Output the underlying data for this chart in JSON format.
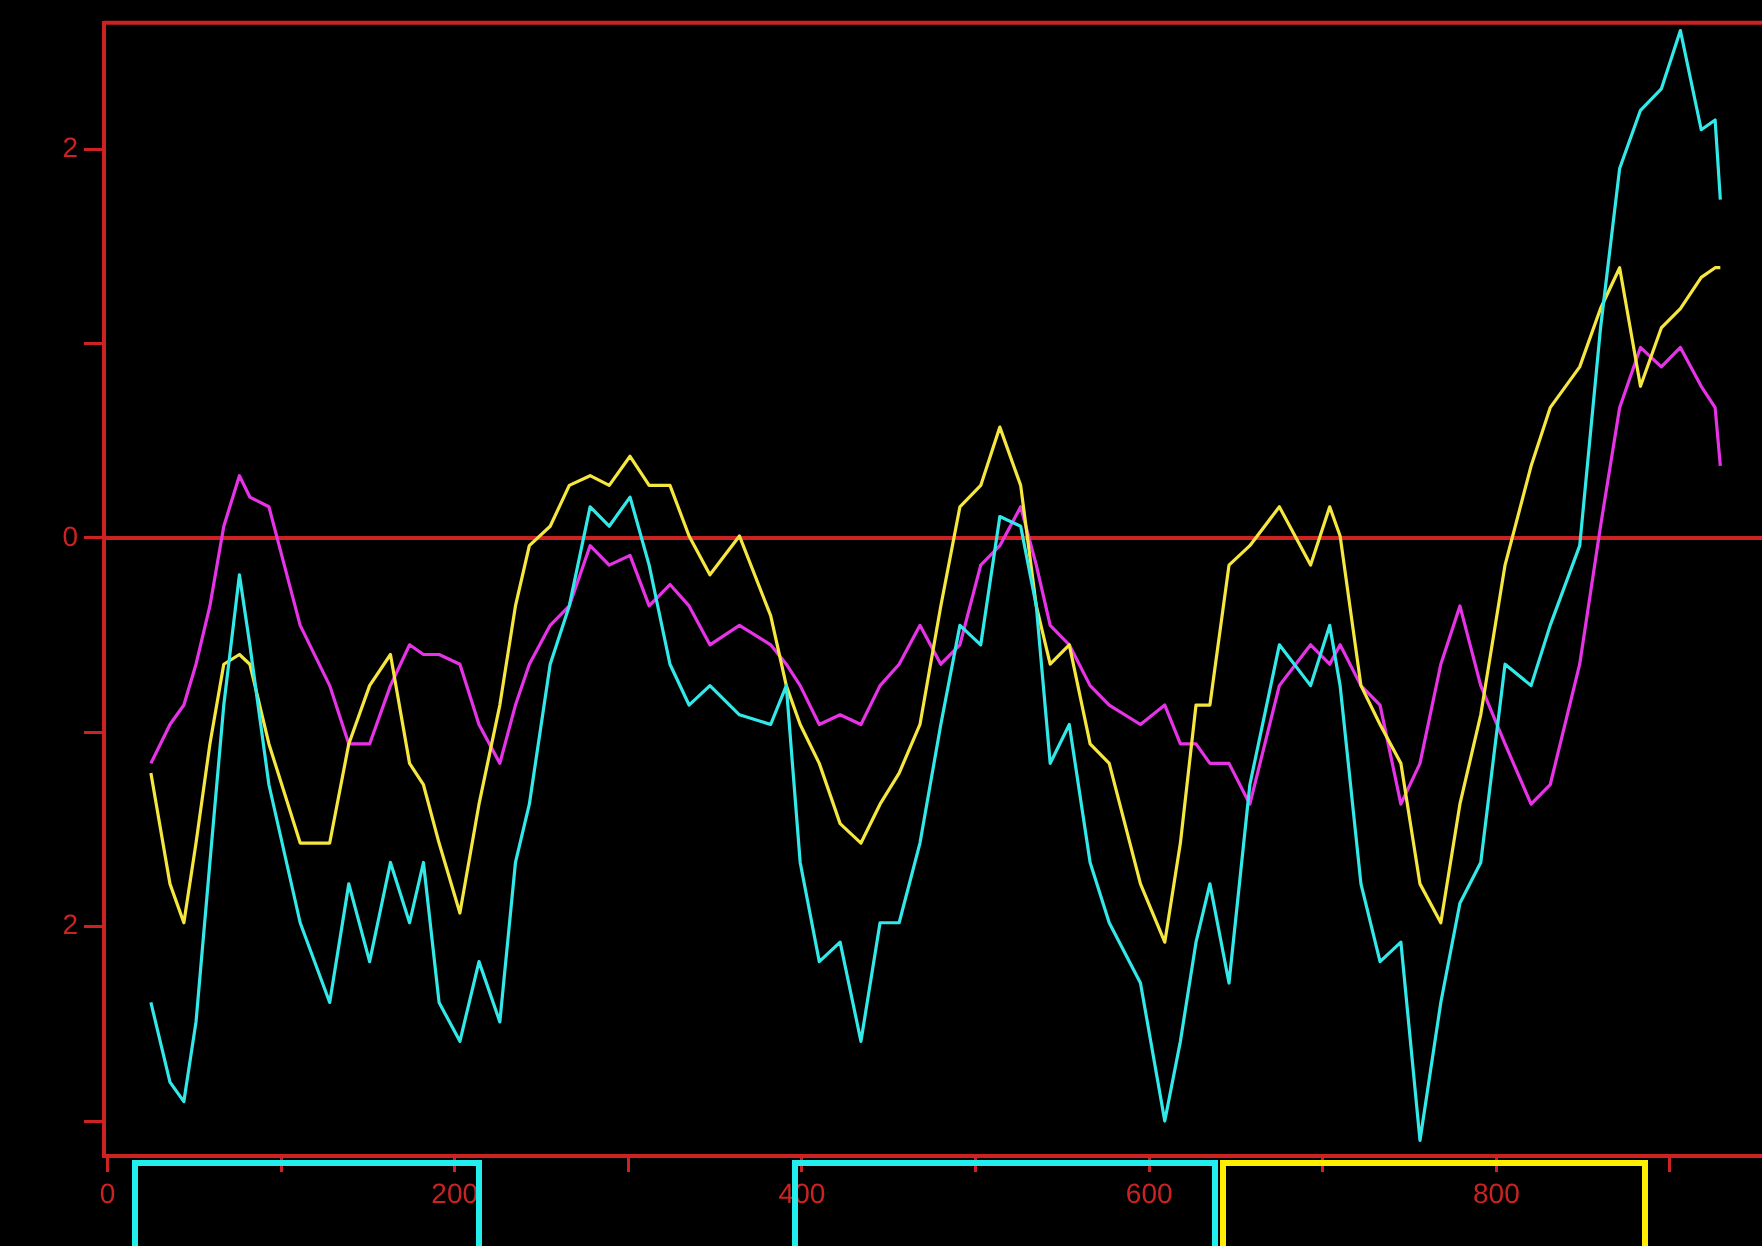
{
  "chart_data": {
    "type": "line",
    "x": [
      25,
      36,
      44,
      51,
      59,
      67,
      76,
      82,
      93,
      111,
      128,
      139,
      151,
      163,
      174,
      182,
      191,
      203,
      214,
      226,
      235,
      243,
      255,
      266,
      278,
      289,
      301,
      312,
      324,
      335,
      347,
      364,
      382,
      391,
      399,
      410,
      422,
      434,
      445,
      456,
      468,
      480,
      491,
      503,
      514,
      526,
      535,
      543,
      554,
      566,
      577,
      595,
      609,
      618,
      627,
      635,
      646,
      658,
      675,
      693,
      704,
      710,
      722,
      733,
      745,
      756,
      768,
      779,
      791,
      805,
      820,
      831,
      848,
      860,
      871,
      883,
      895,
      906,
      918,
      926,
      929
    ],
    "series": [
      {
        "color": "#33e8e8",
        "values": [
          -2.39,
          -2.8,
          -2.9,
          -2.49,
          -1.67,
          -0.86,
          -0.19,
          -0.55,
          -1.27,
          -1.98,
          -2.39,
          -1.78,
          -2.18,
          -1.67,
          -1.98,
          -1.67,
          -2.39,
          -2.59,
          -2.18,
          -2.49,
          -1.67,
          -1.37,
          -0.65,
          -0.35,
          0.16,
          0.06,
          0.21,
          -0.14,
          -0.65,
          -0.86,
          -0.76,
          -0.91,
          -0.96,
          -0.76,
          -1.67,
          -2.18,
          -2.08,
          -2.59,
          -1.98,
          -1.98,
          -1.57,
          -0.96,
          -0.45,
          -0.55,
          0.11,
          0.06,
          -0.35,
          -1.16,
          -0.96,
          -1.67,
          -1.98,
          -2.29,
          -3.0,
          -2.59,
          -2.08,
          -1.78,
          -2.29,
          -1.27,
          -0.55,
          -0.76,
          -0.45,
          -0.76,
          -1.78,
          -2.18,
          -2.08,
          -3.1,
          -2.39,
          -1.88,
          -1.67,
          -0.65,
          -0.76,
          -0.45,
          -0.04,
          1.08,
          1.9,
          2.2,
          2.31,
          2.61,
          2.1,
          2.15,
          1.74
        ]
      },
      {
        "color": "#f5e640",
        "values": [
          -1.21,
          -1.78,
          -1.98,
          -1.57,
          -1.06,
          -0.65,
          -0.6,
          -0.65,
          -1.06,
          -1.57,
          -1.57,
          -1.06,
          -0.76,
          -0.6,
          -1.16,
          -1.27,
          -1.57,
          -1.93,
          -1.37,
          -0.86,
          -0.35,
          -0.04,
          0.06,
          0.27,
          0.32,
          0.27,
          0.42,
          0.27,
          0.27,
          0.01,
          -0.19,
          0.01,
          -0.4,
          -0.76,
          -0.96,
          -1.16,
          -1.47,
          -1.57,
          -1.37,
          -1.21,
          -0.96,
          -0.35,
          0.16,
          0.27,
          0.57,
          0.27,
          -0.35,
          -0.65,
          -0.55,
          -1.06,
          -1.16,
          -1.78,
          -2.08,
          -1.57,
          -0.86,
          -0.86,
          -0.14,
          -0.04,
          0.16,
          -0.14,
          0.16,
          0.01,
          -0.76,
          -0.96,
          -1.16,
          -1.78,
          -1.98,
          -1.37,
          -0.91,
          -0.14,
          0.37,
          0.67,
          0.88,
          1.18,
          1.39,
          0.78,
          1.08,
          1.18,
          1.34,
          1.39,
          1.39
        ]
      },
      {
        "color": "#e633e6",
        "values": [
          -1.16,
          -0.96,
          -0.86,
          -0.65,
          -0.35,
          0.06,
          0.32,
          0.21,
          0.16,
          -0.45,
          -0.76,
          -1.06,
          -1.06,
          -0.76,
          -0.55,
          -0.6,
          -0.6,
          -0.65,
          -0.96,
          -1.16,
          -0.86,
          -0.65,
          -0.45,
          -0.35,
          -0.04,
          -0.14,
          -0.09,
          -0.35,
          -0.24,
          -0.35,
          -0.55,
          -0.45,
          -0.55,
          -0.65,
          -0.76,
          -0.96,
          -0.91,
          -0.96,
          -0.76,
          -0.65,
          -0.45,
          -0.65,
          -0.55,
          -0.14,
          -0.04,
          0.16,
          -0.14,
          -0.45,
          -0.55,
          -0.76,
          -0.86,
          -0.96,
          -0.86,
          -1.06,
          -1.06,
          -1.16,
          -1.16,
          -1.37,
          -0.76,
          -0.55,
          -0.65,
          -0.55,
          -0.76,
          -0.86,
          -1.37,
          -1.16,
          -0.65,
          -0.35,
          -0.76,
          -1.06,
          -1.37,
          -1.27,
          -0.65,
          0.06,
          0.67,
          0.98,
          0.88,
          0.98,
          0.78,
          0.67,
          0.37
        ]
      }
    ],
    "xlim": [
      -2,
      953
    ],
    "ylim": [
      -3.18,
      2.65
    ],
    "xticks": [
      0,
      {
        "value": 100,
        "label": null
      },
      200,
      {
        "value": 300,
        "label": null
      },
      400,
      {
        "value": 500,
        "label": null
      },
      600,
      {
        "value": 700,
        "label": null
      },
      800,
      {
        "value": 900,
        "label": null
      }
    ],
    "yticks": [
      {
        "value": -3,
        "label": null
      },
      {
        "value": -2,
        "label": "2"
      },
      {
        "value": -1,
        "label": null
      },
      0,
      {
        "value": 1,
        "label": null
      },
      2
    ],
    "ref_lines": [
      {
        "axis": "y",
        "value": 0,
        "color": "#cc2222"
      }
    ],
    "grid": false,
    "legend": false,
    "marker": "none",
    "line_style": "solid"
  }
}
